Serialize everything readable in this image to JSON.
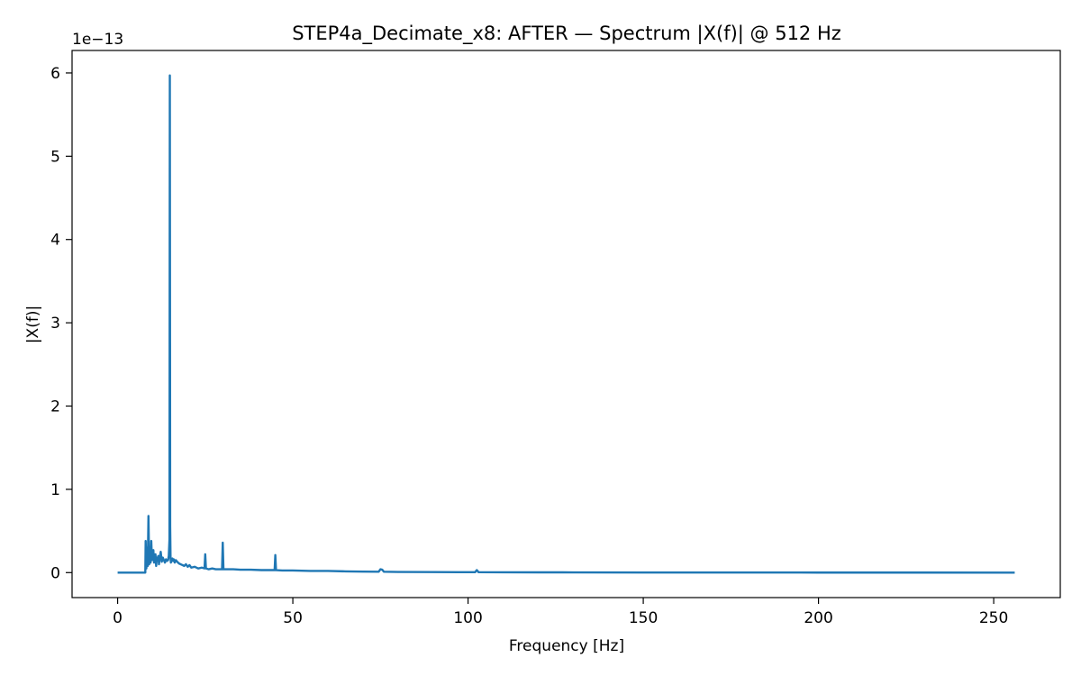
{
  "chart_data": {
    "type": "line",
    "title": "STEP4a_Decimate_x8: AFTER — Spectrum |X(f)| @ 512 Hz",
    "xlabel": "Frequency [Hz]",
    "ylabel": "|X(f)|",
    "y_offset_label": "1e−13",
    "y_scale_exponent": -13,
    "xlim": [
      -13,
      269
    ],
    "ylim": [
      -0.3,
      6.27
    ],
    "xticks": [
      0,
      50,
      100,
      150,
      200,
      250
    ],
    "xtick_labels": [
      "0",
      "50",
      "100",
      "150",
      "200",
      "250"
    ],
    "yticks": [
      0,
      1,
      2,
      3,
      4,
      5,
      6
    ],
    "ytick_labels": [
      "0",
      "1",
      "2",
      "3",
      "4",
      "5",
      "6"
    ],
    "grid": false,
    "line_color": "#1f77b4",
    "series": [
      {
        "x": [
          0,
          7.9,
          8.0,
          8.2,
          8.4,
          8.6,
          8.8,
          9.0,
          9.2,
          9.4,
          9.6,
          9.8,
          10.0,
          10.2,
          10.4,
          10.6,
          10.8,
          11.0,
          11.2,
          11.4,
          11.6,
          11.8,
          12.0,
          12.3,
          12.6,
          12.9,
          13.2,
          13.5,
          13.8,
          14.1,
          14.4,
          14.6,
          14.8,
          14.9,
          15.0,
          15.1,
          15.2,
          15.4,
          15.6,
          15.8,
          16.0,
          16.3,
          16.6,
          17.0,
          17.5,
          18.0,
          18.5,
          19.0,
          19.5,
          20.0,
          20.5,
          21.0,
          22.0,
          23.0,
          24.0,
          24.8,
          25.0,
          25.2,
          26.0,
          27.0,
          28.0,
          29.0,
          29.8,
          30.0,
          30.2,
          31.0,
          33.0,
          35.0,
          38.0,
          41.0,
          44.0,
          44.8,
          45.0,
          45.2,
          47.0,
          50.0,
          55.0,
          60.0,
          65.0,
          70.0,
          74.5,
          75.0,
          75.5,
          76.0,
          80.0,
          90.0,
          100.0,
          102.0,
          102.5,
          103.0,
          110.0,
          120.0,
          127.0,
          130.0,
          150.0,
          200.0,
          256.0
        ],
        "y": [
          0,
          0,
          0.38,
          0.05,
          0.3,
          0.08,
          0.68,
          0.1,
          0.25,
          0.12,
          0.38,
          0.15,
          0.22,
          0.27,
          0.12,
          0.2,
          0.22,
          0.08,
          0.18,
          0.15,
          0.2,
          0.1,
          0.17,
          0.25,
          0.13,
          0.18,
          0.15,
          0.12,
          0.16,
          0.14,
          0.15,
          0.2,
          0.4,
          5.97,
          0.55,
          0.18,
          0.12,
          0.15,
          0.17,
          0.14,
          0.16,
          0.12,
          0.15,
          0.13,
          0.11,
          0.1,
          0.09,
          0.08,
          0.1,
          0.07,
          0.09,
          0.06,
          0.07,
          0.05,
          0.06,
          0.05,
          0.22,
          0.05,
          0.04,
          0.05,
          0.04,
          0.04,
          0.04,
          0.36,
          0.04,
          0.04,
          0.04,
          0.035,
          0.035,
          0.03,
          0.03,
          0.03,
          0.21,
          0.03,
          0.025,
          0.025,
          0.02,
          0.02,
          0.015,
          0.012,
          0.01,
          0.04,
          0.035,
          0.01,
          0.008,
          0.006,
          0.005,
          0.005,
          0.03,
          0.005,
          0.004,
          0.003,
          0.003,
          0.002,
          0.001,
          0.0005,
          0
        ]
      }
    ]
  }
}
